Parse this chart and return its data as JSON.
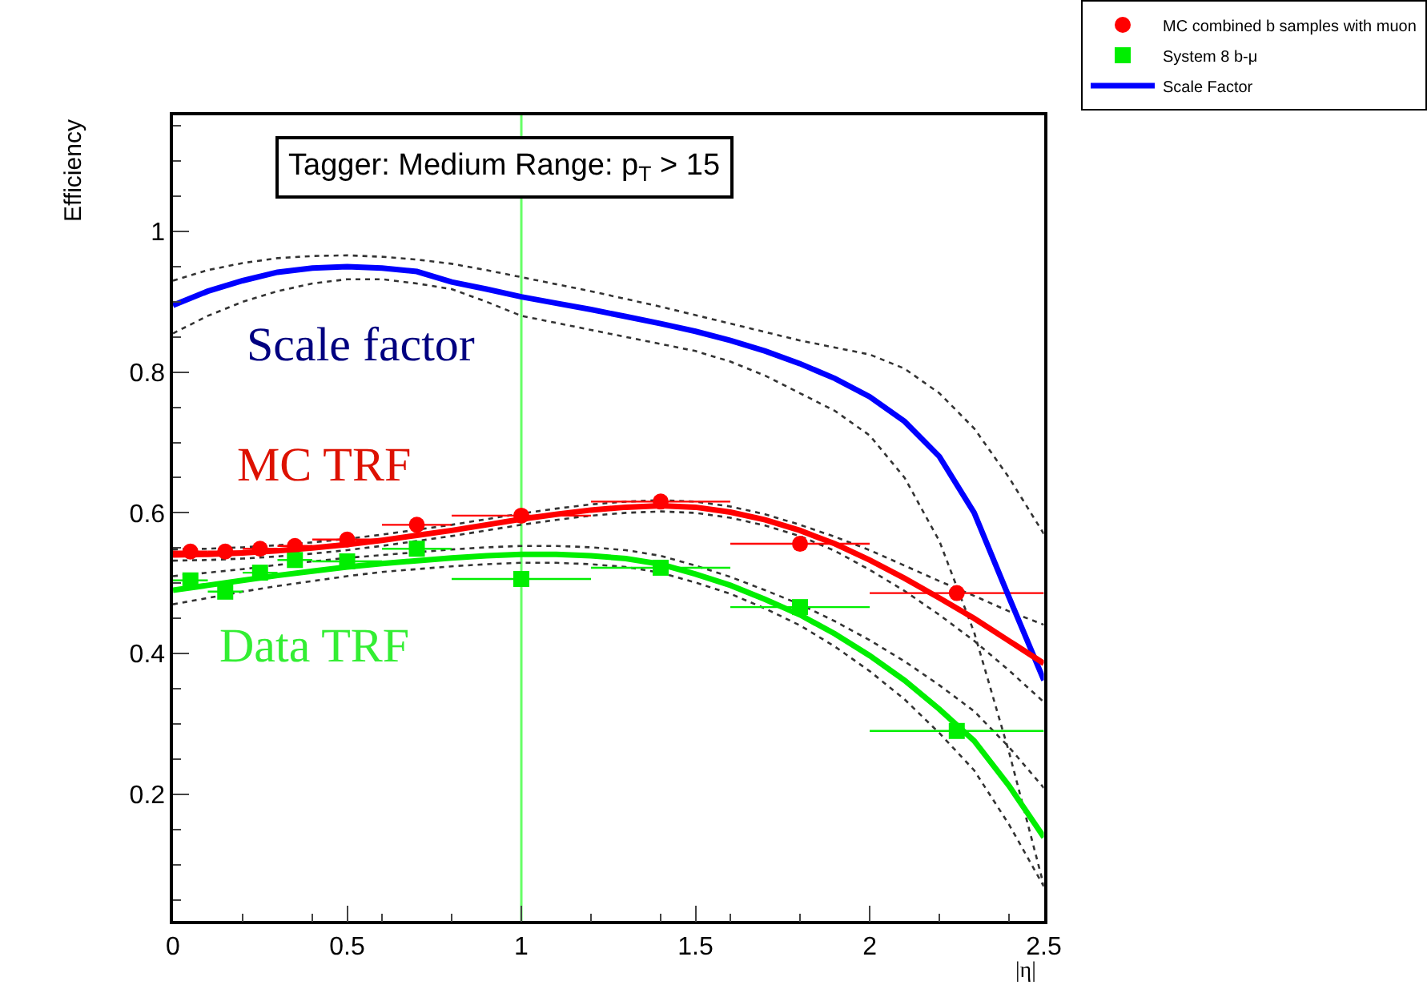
{
  "chart_data": {
    "type": "scatter",
    "title": "Tagger: Medium Range: p$_{T}$ > 15",
    "xlabel": "|η|",
    "ylabel": "Efficiency",
    "xlim": [
      0,
      2.5
    ],
    "xticks": [
      0,
      0.5,
      1,
      1.5,
      2,
      2.5
    ],
    "ylim": [
      0.02,
      1.165
    ],
    "yticks": [
      0.2,
      0.4,
      0.6,
      0.8,
      1
    ],
    "grid": false,
    "legend": "top right",
    "series": [
      {
        "name": "MC combined b samples with muon",
        "marker": "circle",
        "color": "#ff0000",
        "x": [
          0.05,
          0.15,
          0.25,
          0.35,
          0.5,
          0.7,
          1.0,
          1.4,
          1.8,
          2.25
        ],
        "values": [
          0.545,
          0.545,
          0.549,
          0.553,
          0.562,
          0.583,
          0.596,
          0.616,
          0.556,
          0.486
        ],
        "xerrors": [
          0.05,
          0.05,
          0.05,
          0.05,
          0.1,
          0.1,
          0.2,
          0.2,
          0.2,
          0.25
        ]
      },
      {
        "name": "System 8 b-μ",
        "marker": "square",
        "color": "#00ee00",
        "x": [
          0.05,
          0.15,
          0.25,
          0.35,
          0.5,
          0.7,
          1.0,
          1.4,
          1.8,
          2.25
        ],
        "values": [
          0.504,
          0.488,
          0.515,
          0.533,
          0.531,
          0.549,
          0.506,
          0.522,
          0.466,
          0.29
        ],
        "xerrors": [
          0.05,
          0.05,
          0.05,
          0.05,
          0.1,
          0.1,
          0.2,
          0.2,
          0.2,
          0.25
        ]
      },
      {
        "name": "Scale Factor",
        "type": "line",
        "marker": "none",
        "color": "#0000ff",
        "x": [
          0,
          0.1,
          0.2,
          0.3,
          0.4,
          0.5,
          0.6,
          0.7,
          0.8,
          0.9,
          1.0,
          1.1,
          1.2,
          1.3,
          1.4,
          1.5,
          1.6,
          1.7,
          1.8,
          1.9,
          2.0,
          2.1,
          2.2,
          2.3,
          2.4,
          2.5
        ],
        "values": [
          0.895,
          0.915,
          0.93,
          0.942,
          0.948,
          0.95,
          0.948,
          0.943,
          0.928,
          0.918,
          0.907,
          0.898,
          0.889,
          0.879,
          0.869,
          0.858,
          0.845,
          0.83,
          0.812,
          0.791,
          0.765,
          0.73,
          0.68,
          0.6,
          0.48,
          0.362
        ]
      },
      {
        "type": "line",
        "marker": "none",
        "color": "#ff0000",
        "x": [
          0,
          0.1,
          0.2,
          0.3,
          0.4,
          0.5,
          0.6,
          0.7,
          0.8,
          0.9,
          1.0,
          1.1,
          1.2,
          1.3,
          1.4,
          1.5,
          1.6,
          1.7,
          1.8,
          1.9,
          2.0,
          2.1,
          2.2,
          2.3,
          2.4,
          2.5
        ],
        "values": [
          0.54,
          0.541,
          0.543,
          0.546,
          0.55,
          0.555,
          0.561,
          0.568,
          0.575,
          0.583,
          0.591,
          0.598,
          0.604,
          0.608,
          0.61,
          0.608,
          0.601,
          0.59,
          0.575,
          0.556,
          0.533,
          0.507,
          0.479,
          0.45,
          0.418,
          0.386
        ]
      },
      {
        "type": "line",
        "marker": "none",
        "color": "#00ee00",
        "x": [
          0,
          0.1,
          0.2,
          0.3,
          0.4,
          0.5,
          0.6,
          0.7,
          0.8,
          0.9,
          1.0,
          1.1,
          1.2,
          1.3,
          1.4,
          1.5,
          1.6,
          1.7,
          1.8,
          1.9,
          2.0,
          2.1,
          2.2,
          2.3,
          2.4,
          2.5
        ],
        "values": [
          0.49,
          0.497,
          0.504,
          0.511,
          0.517,
          0.523,
          0.528,
          0.532,
          0.536,
          0.539,
          0.541,
          0.541,
          0.539,
          0.535,
          0.527,
          0.513,
          0.497,
          0.477,
          0.455,
          0.428,
          0.397,
          0.362,
          0.321,
          0.276,
          0.212,
          0.139
        ]
      },
      {
        "type": "line",
        "marker": "none",
        "line_style": "dotted",
        "color": "#333333",
        "x": [
          0,
          0.1,
          0.2,
          0.3,
          0.4,
          0.5,
          0.6,
          0.7,
          0.8,
          0.9,
          1.0,
          1.1,
          1.2,
          1.3,
          1.4,
          1.5,
          1.6,
          1.7,
          1.8,
          1.9,
          2.0,
          2.1,
          2.2,
          2.3,
          2.4,
          2.5
        ],
        "values": [
          0.93,
          0.945,
          0.955,
          0.962,
          0.965,
          0.966,
          0.964,
          0.96,
          0.954,
          0.945,
          0.935,
          0.925,
          0.915,
          0.904,
          0.893,
          0.881,
          0.869,
          0.857,
          0.845,
          0.835,
          0.825,
          0.805,
          0.77,
          0.72,
          0.65,
          0.57
        ]
      },
      {
        "type": "line",
        "marker": "none",
        "line_style": "dotted",
        "color": "#333333",
        "x": [
          0,
          0.1,
          0.2,
          0.3,
          0.4,
          0.5,
          0.6,
          0.7,
          0.8,
          0.9,
          1.0,
          1.1,
          1.2,
          1.3,
          1.4,
          1.5,
          1.6,
          1.7,
          1.8,
          1.9,
          2.0,
          2.1,
          2.2,
          2.3,
          2.4,
          2.5
        ],
        "values": [
          0.855,
          0.88,
          0.9,
          0.915,
          0.926,
          0.932,
          0.932,
          0.926,
          0.918,
          0.9,
          0.88,
          0.87,
          0.86,
          0.85,
          0.84,
          0.83,
          0.815,
          0.795,
          0.77,
          0.745,
          0.71,
          0.65,
          0.56,
          0.43,
          0.26,
          0.07
        ]
      },
      {
        "type": "line",
        "marker": "none",
        "line_style": "dotted",
        "color": "#333333",
        "x": [
          0,
          0.1,
          0.2,
          0.3,
          0.4,
          0.5,
          0.6,
          0.7,
          0.8,
          0.9,
          1.0,
          1.1,
          1.2,
          1.3,
          1.4,
          1.5,
          1.6,
          1.7,
          1.8,
          1.9,
          2.0,
          2.1,
          2.2,
          2.3,
          2.4,
          2.5
        ],
        "values": [
          0.548,
          0.549,
          0.551,
          0.554,
          0.558,
          0.563,
          0.569,
          0.576,
          0.583,
          0.591,
          0.599,
          0.606,
          0.612,
          0.616,
          0.618,
          0.616,
          0.609,
          0.598,
          0.583,
          0.566,
          0.547,
          0.525,
          0.503,
          0.482,
          0.46,
          0.441
        ]
      },
      {
        "type": "line",
        "marker": "none",
        "line_style": "dotted",
        "color": "#333333",
        "x": [
          0,
          0.1,
          0.2,
          0.3,
          0.4,
          0.5,
          0.6,
          0.7,
          0.8,
          0.9,
          1.0,
          1.1,
          1.2,
          1.3,
          1.4,
          1.5,
          1.6,
          1.7,
          1.8,
          1.9,
          2.0,
          2.1,
          2.2,
          2.3,
          2.4,
          2.5
        ],
        "values": [
          0.532,
          0.533,
          0.535,
          0.538,
          0.542,
          0.547,
          0.553,
          0.56,
          0.567,
          0.575,
          0.583,
          0.59,
          0.596,
          0.6,
          0.602,
          0.6,
          0.593,
          0.582,
          0.567,
          0.546,
          0.519,
          0.489,
          0.455,
          0.418,
          0.376,
          0.331
        ]
      },
      {
        "type": "line",
        "marker": "none",
        "line_style": "dotted",
        "color": "#333333",
        "x": [
          0,
          0.1,
          0.2,
          0.3,
          0.4,
          0.5,
          0.6,
          0.7,
          0.8,
          0.9,
          1.0,
          1.1,
          1.2,
          1.3,
          1.4,
          1.5,
          1.6,
          1.7,
          1.8,
          1.9,
          2.0,
          2.1,
          2.2,
          2.3,
          2.4,
          2.5
        ],
        "values": [
          0.51,
          0.515,
          0.52,
          0.526,
          0.531,
          0.536,
          0.54,
          0.544,
          0.548,
          0.551,
          0.553,
          0.553,
          0.551,
          0.547,
          0.539,
          0.525,
          0.509,
          0.49,
          0.47,
          0.446,
          0.419,
          0.389,
          0.355,
          0.318,
          0.267,
          0.209
        ]
      },
      {
        "type": "line",
        "marker": "none",
        "line_style": "dotted",
        "color": "#333333",
        "x": [
          0,
          0.1,
          0.2,
          0.3,
          0.4,
          0.5,
          0.6,
          0.7,
          0.8,
          0.9,
          1.0,
          1.1,
          1.2,
          1.3,
          1.4,
          1.5,
          1.6,
          1.7,
          1.8,
          1.9,
          2.0,
          2.1,
          2.2,
          2.3,
          2.4,
          2.5
        ],
        "values": [
          0.47,
          0.479,
          0.488,
          0.496,
          0.503,
          0.51,
          0.516,
          0.52,
          0.524,
          0.527,
          0.529,
          0.529,
          0.527,
          0.523,
          0.515,
          0.501,
          0.485,
          0.464,
          0.44,
          0.41,
          0.375,
          0.335,
          0.287,
          0.234,
          0.157,
          0.069
        ]
      }
    ],
    "ref_lines": [
      {
        "axis": "x",
        "value": 1,
        "color": "#66ff66"
      }
    ],
    "annotations": [
      "Scale factor",
      "MC TRF",
      "Data TRF"
    ]
  }
}
